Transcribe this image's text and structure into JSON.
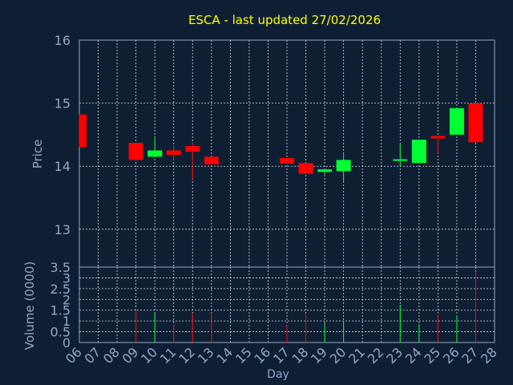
{
  "chart_data": {
    "type": "candlestick",
    "title": "ESCA - last updated 27/02/2026",
    "xlabel": "Day",
    "ylabel": "Price",
    "volume_label": "Volume (0000)",
    "days": [
      "06",
      "07",
      "08",
      "09",
      "10",
      "11",
      "12",
      "13",
      "14",
      "15",
      "16",
      "17",
      "18",
      "19",
      "20",
      "21",
      "22",
      "23",
      "24",
      "25",
      "26",
      "27",
      "28"
    ],
    "price_ylim": [
      12.4,
      16
    ],
    "price_ticks": [
      "13",
      "14",
      "15",
      "16"
    ],
    "volume_ylim": [
      0,
      3.5
    ],
    "volume_ticks": [
      "0",
      "0.5",
      "1",
      "1.5",
      "2",
      "2.5",
      "3",
      "3.5"
    ],
    "up_color": "#00ff33",
    "down_color": "#ff0000",
    "grid": true,
    "candles": [
      {
        "day": "06",
        "open": 14.82,
        "close": 14.3,
        "high": 14.82,
        "low": 14.3,
        "volume": 0
      },
      {
        "day": "09",
        "open": 14.37,
        "close": 14.1,
        "high": 14.37,
        "low": 14.1,
        "volume": 1.5
      },
      {
        "day": "10",
        "open": 14.15,
        "close": 14.25,
        "high": 14.45,
        "low": 14.15,
        "volume": 1.35
      },
      {
        "day": "11",
        "open": 14.25,
        "close": 14.18,
        "high": 14.33,
        "low": 14.1,
        "volume": 0.85
      },
      {
        "day": "12",
        "open": 14.32,
        "close": 14.23,
        "high": 14.37,
        "low": 13.8,
        "volume": 1.35
      },
      {
        "day": "13",
        "open": 14.15,
        "close": 14.03,
        "high": 14.15,
        "low": 14.03,
        "volume": 1.35
      },
      {
        "day": "17",
        "open": 14.13,
        "close": 14.04,
        "high": 14.13,
        "low": 14.04,
        "volume": 0.8
      },
      {
        "day": "18",
        "open": 14.05,
        "close": 13.88,
        "high": 14.05,
        "low": 13.88,
        "volume": 1.25
      },
      {
        "day": "19",
        "open": 13.91,
        "close": 13.95,
        "high": 13.95,
        "low": 13.87,
        "volume": 0.9
      },
      {
        "day": "20",
        "open": 13.92,
        "close": 14.1,
        "high": 14.2,
        "low": 13.75,
        "volume": 1.0
      },
      {
        "day": "23",
        "open": 14.09,
        "close": 14.11,
        "high": 14.35,
        "low": 14.0,
        "volume": 1.75
      },
      {
        "day": "24",
        "open": 14.05,
        "close": 14.42,
        "high": 14.42,
        "low": 14.05,
        "volume": 0.85
      },
      {
        "day": "25",
        "open": 14.48,
        "close": 14.44,
        "high": 14.48,
        "low": 14.2,
        "volume": 1.25
      },
      {
        "day": "26",
        "open": 14.5,
        "close": 14.92,
        "high": 14.92,
        "low": 14.5,
        "volume": 1.25
      },
      {
        "day": "27",
        "open": 15.0,
        "close": 14.38,
        "high": 15.0,
        "low": 14.38,
        "volume": 3.3
      }
    ]
  }
}
